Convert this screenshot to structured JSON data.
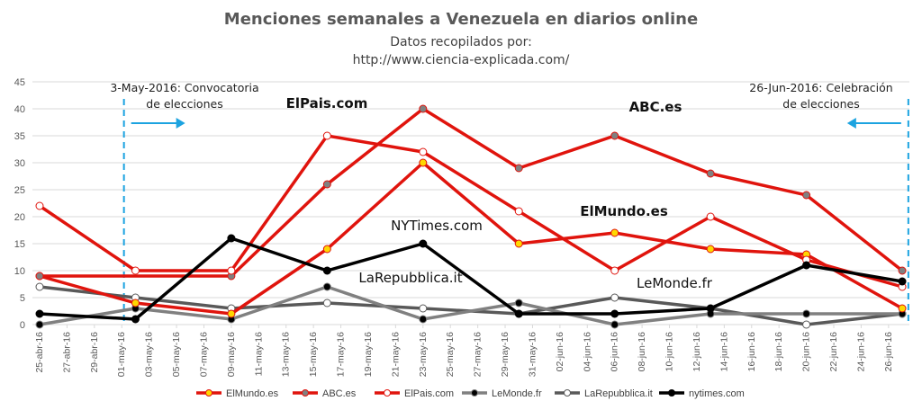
{
  "colors": {
    "elmundo": "#e0140d",
    "abc": "#e0140d",
    "elpais": "#e0140d",
    "lemonde": "#808080",
    "larepubblica": "#595959",
    "nytimes": "#000000",
    "event_line": "#1ca3e0",
    "grid": "#d9d9d9",
    "text": "#595959"
  },
  "chart_data": {
    "type": "line",
    "title": "Menciones semanales a Venezuela en diarios online",
    "subtitle": [
      "Datos recopilados por:",
      "http://www.ciencia-explicada.com/"
    ],
    "ylim": [
      0,
      45
    ],
    "yticks": [
      0,
      5,
      10,
      15,
      20,
      25,
      30,
      35,
      40,
      45
    ],
    "grid": true,
    "legend_position": "bottom",
    "x_labels": [
      "25-abr-16",
      "27-abr-16",
      "29-abr-16",
      "01-may-16",
      "03-may-16",
      "05-may-16",
      "07-may-16",
      "09-may-16",
      "11-may-16",
      "13-may-16",
      "15-may-16",
      "17-may-16",
      "19-may-16",
      "21-may-16",
      "23-may-16",
      "25-may-16",
      "27-may-16",
      "29-may-16",
      "31-may-16",
      "02-jun-16",
      "04-jun-16",
      "06-jun-16",
      "08-jun-16",
      "10-jun-16",
      "12-jun-16",
      "14-jun-16",
      "16-jun-16",
      "18-jun-16",
      "20-jun-16",
      "22-jun-16",
      "24-jun-16",
      "26-jun-16"
    ],
    "x": [
      "25-abr-16",
      "02-may-16",
      "09-may-16",
      "16-may-16",
      "23-may-16",
      "30-may-16",
      "06-jun-16",
      "13-jun-16",
      "20-jun-16",
      "27-jun-16"
    ],
    "series": [
      {
        "name": "ElMundo.es",
        "key": "elmundo",
        "marker_fill": "#ffd700",
        "values": [
          9,
          4,
          2,
          14,
          30,
          15,
          17,
          14,
          13,
          3
        ]
      },
      {
        "name": "ABC.es",
        "key": "abc",
        "marker_fill": "#808080",
        "values": [
          9,
          null,
          9,
          26,
          40,
          29,
          35,
          28,
          24,
          10
        ]
      },
      {
        "name": "ElPais.com",
        "key": "elpais",
        "marker_fill": "#ffffff",
        "values": [
          22,
          10,
          10,
          35,
          32,
          21,
          10,
          20,
          12,
          7
        ]
      },
      {
        "name": "LeMonde.fr",
        "key": "lemonde",
        "marker_fill": "#000000",
        "values": [
          0,
          3,
          1,
          7,
          1,
          4,
          0,
          2,
          2,
          2
        ]
      },
      {
        "name": "LaRepubblica.it",
        "key": "larepubblica",
        "marker_fill": "#ffffff",
        "values": [
          7,
          5,
          3,
          4,
          3,
          2,
          5,
          3,
          0,
          2
        ]
      },
      {
        "name": "nytimes.com",
        "key": "nytimes",
        "marker_fill": "#000000",
        "values": [
          2,
          1,
          16,
          10,
          15,
          2,
          2,
          3,
          11,
          8
        ]
      }
    ],
    "events": [
      {
        "x": "03-may-16",
        "label": [
          "3-May-2016: Convocatoria",
          "de elecciones"
        ],
        "arrow": "right"
      },
      {
        "x": "26-jun-16",
        "label": [
          "26-Jun-2016: Celebración",
          "de elecciones"
        ],
        "arrow": "left"
      }
    ],
    "annotations": [
      {
        "text": "ElPais.com",
        "bold": true
      },
      {
        "text": "ABC.es",
        "bold": true
      },
      {
        "text": "ElMundo.es",
        "bold": true
      },
      {
        "text": "NYTimes.com",
        "bold": false
      },
      {
        "text": "LaRepubblica.it",
        "bold": false
      },
      {
        "text": "LeMonde.fr",
        "bold": false
      }
    ]
  }
}
